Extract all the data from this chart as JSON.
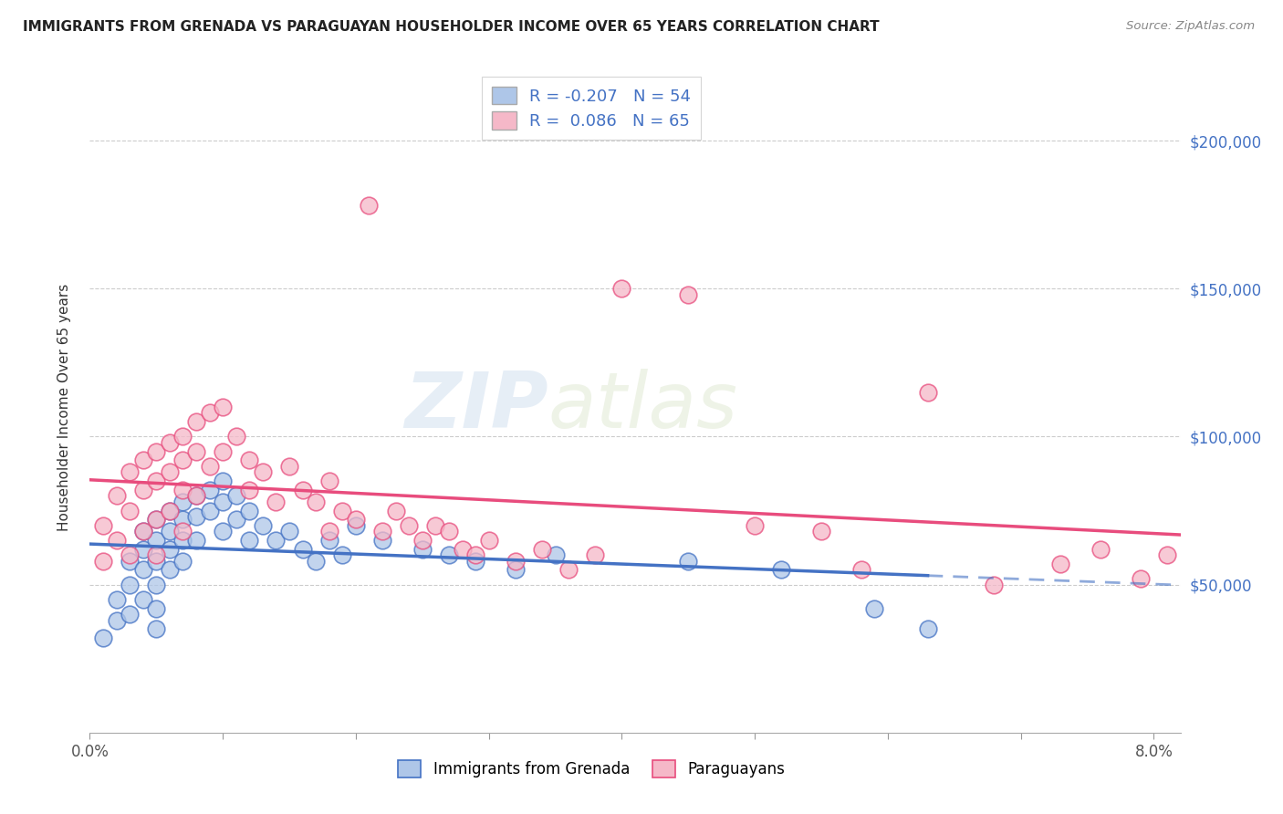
{
  "title": "IMMIGRANTS FROM GRENADA VS PARAGUAYAN HOUSEHOLDER INCOME OVER 65 YEARS CORRELATION CHART",
  "source": "Source: ZipAtlas.com",
  "ylabel": "Householder Income Over 65 years",
  "legend_label1": "Immigrants from Grenada",
  "legend_label2": "Paraguayans",
  "r1": -0.207,
  "n1": 54,
  "r2": 0.086,
  "n2": 65,
  "yaxis_labels": [
    "$50,000",
    "$100,000",
    "$150,000",
    "$200,000"
  ],
  "yaxis_values": [
    50000,
    100000,
    150000,
    200000
  ],
  "color_blue": "#aec6e8",
  "color_pink": "#f5b8c8",
  "color_blue_line": "#4472c4",
  "color_pink_line": "#e84c7d",
  "color_blue_text": "#4472c4",
  "color_pink_text": "#e84c7d",
  "watermark_zip": "ZIP",
  "watermark_atlas": "atlas",
  "background_color": "#ffffff",
  "ylim": [
    0,
    220000
  ],
  "xlim": [
    0.0,
    0.082
  ],
  "blue_x": [
    0.001,
    0.002,
    0.002,
    0.003,
    0.003,
    0.003,
    0.004,
    0.004,
    0.004,
    0.004,
    0.005,
    0.005,
    0.005,
    0.005,
    0.005,
    0.005,
    0.006,
    0.006,
    0.006,
    0.006,
    0.007,
    0.007,
    0.007,
    0.007,
    0.008,
    0.008,
    0.008,
    0.009,
    0.009,
    0.01,
    0.01,
    0.01,
    0.011,
    0.011,
    0.012,
    0.012,
    0.013,
    0.014,
    0.015,
    0.016,
    0.017,
    0.018,
    0.019,
    0.02,
    0.022,
    0.025,
    0.027,
    0.029,
    0.032,
    0.035,
    0.045,
    0.052,
    0.059,
    0.063
  ],
  "blue_y": [
    32000,
    45000,
    38000,
    58000,
    50000,
    40000,
    68000,
    62000,
    55000,
    45000,
    72000,
    65000,
    58000,
    50000,
    42000,
    35000,
    75000,
    68000,
    62000,
    55000,
    78000,
    72000,
    65000,
    58000,
    80000,
    73000,
    65000,
    82000,
    75000,
    85000,
    78000,
    68000,
    80000,
    72000,
    75000,
    65000,
    70000,
    65000,
    68000,
    62000,
    58000,
    65000,
    60000,
    70000,
    65000,
    62000,
    60000,
    58000,
    55000,
    60000,
    58000,
    55000,
    42000,
    35000
  ],
  "pink_x": [
    0.001,
    0.001,
    0.002,
    0.002,
    0.003,
    0.003,
    0.003,
    0.004,
    0.004,
    0.004,
    0.005,
    0.005,
    0.005,
    0.005,
    0.006,
    0.006,
    0.006,
    0.007,
    0.007,
    0.007,
    0.007,
    0.008,
    0.008,
    0.008,
    0.009,
    0.009,
    0.01,
    0.01,
    0.011,
    0.012,
    0.012,
    0.013,
    0.014,
    0.015,
    0.016,
    0.017,
    0.018,
    0.018,
    0.019,
    0.02,
    0.021,
    0.022,
    0.023,
    0.024,
    0.025,
    0.026,
    0.027,
    0.028,
    0.029,
    0.03,
    0.032,
    0.034,
    0.036,
    0.038,
    0.04,
    0.045,
    0.05,
    0.055,
    0.058,
    0.063,
    0.068,
    0.073,
    0.076,
    0.079,
    0.081
  ],
  "pink_y": [
    70000,
    58000,
    80000,
    65000,
    88000,
    75000,
    60000,
    92000,
    82000,
    68000,
    95000,
    85000,
    72000,
    60000,
    98000,
    88000,
    75000,
    100000,
    92000,
    82000,
    68000,
    105000,
    95000,
    80000,
    108000,
    90000,
    110000,
    95000,
    100000,
    92000,
    82000,
    88000,
    78000,
    90000,
    82000,
    78000,
    85000,
    68000,
    75000,
    72000,
    178000,
    68000,
    75000,
    70000,
    65000,
    70000,
    68000,
    62000,
    60000,
    65000,
    58000,
    62000,
    55000,
    60000,
    150000,
    148000,
    70000,
    68000,
    55000,
    115000,
    50000,
    57000,
    62000,
    52000,
    60000
  ]
}
